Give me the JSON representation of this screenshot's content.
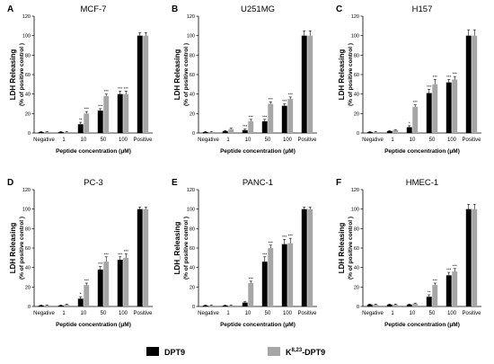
{
  "colors": {
    "dpt9": "#000000",
    "k823": "#a6a6a6",
    "axis": "#000000",
    "error": "#000000"
  },
  "legend": {
    "items": [
      {
        "name": "DPT9",
        "color": "#000000"
      },
      {
        "name_main": "K",
        "name_sup": "8,23",
        "name_rest": "-DPT9",
        "color": "#a6a6a6"
      }
    ],
    "placement": "bottom-center"
  },
  "chart_data": [
    {
      "type": "bar",
      "panel": "A",
      "title": "MCF-7",
      "ylabel": "LDH Releasing",
      "ylabel2": "(% of positive control )",
      "xlabel": "Peptide concentration (μM)",
      "ylim": [
        0,
        120
      ],
      "yticks": [
        0,
        20,
        40,
        60,
        80,
        100,
        120
      ],
      "categories": [
        "Negative",
        "1",
        "10",
        "50",
        "100",
        "Positive"
      ],
      "series": [
        {
          "name": "DPT9",
          "values": [
            1,
            1,
            9,
            23,
            40,
            100
          ],
          "errors": [
            0.5,
            0.5,
            2,
            2,
            3,
            3
          ],
          "sig": [
            "",
            "",
            "**",
            "***",
            "***",
            ""
          ]
        },
        {
          "name": "K8,23-DPT9",
          "values": [
            1,
            1,
            20,
            38,
            40,
            100
          ],
          "errors": [
            0.5,
            0.5,
            2,
            2,
            3,
            3
          ],
          "sig": [
            "",
            "",
            "***",
            "***",
            "***",
            ""
          ]
        }
      ]
    },
    {
      "type": "bar",
      "panel": "B",
      "title": "U251MG",
      "ylabel": "LDH Releasing",
      "ylabel2": "(% of positive control )",
      "xlabel": "Peptide concentration (μM)",
      "ylim": [
        0,
        120
      ],
      "yticks": [
        0,
        20,
        40,
        60,
        80,
        100,
        120
      ],
      "categories": [
        "Negative",
        "1",
        "10",
        "50",
        "100",
        "Positive"
      ],
      "series": [
        {
          "name": "DPT9",
          "values": [
            1,
            2,
            3,
            12,
            28,
            100
          ],
          "errors": [
            0.5,
            0.5,
            1,
            2,
            2,
            5
          ],
          "sig": [
            "",
            "",
            "***",
            "***",
            "***",
            ""
          ]
        },
        {
          "name": "K8,23-DPT9",
          "values": [
            1,
            4,
            12,
            30,
            35,
            100
          ],
          "errors": [
            0.5,
            1,
            2,
            2,
            2,
            5
          ],
          "sig": [
            "",
            "",
            "***",
            "***",
            "***",
            ""
          ]
        }
      ]
    },
    {
      "type": "bar",
      "panel": "C",
      "title": "H157",
      "ylabel": "LDH Releasing",
      "ylabel2": "(% of positive control )",
      "xlabel": "Peptide concentration (μM)",
      "ylim": [
        0,
        120
      ],
      "yticks": [
        0,
        20,
        40,
        60,
        80,
        100,
        120
      ],
      "categories": [
        "Negative",
        "1",
        "10",
        "50",
        "100",
        "Positive"
      ],
      "series": [
        {
          "name": "DPT9",
          "values": [
            1,
            2,
            6,
            41,
            52,
            100
          ],
          "errors": [
            0.5,
            0.5,
            1.5,
            4,
            3,
            6
          ],
          "sig": [
            "",
            "",
            "*",
            "***",
            "***",
            ""
          ]
        },
        {
          "name": "K8,23-DPT9",
          "values": [
            1,
            3,
            27,
            50,
            55,
            100
          ],
          "errors": [
            0.5,
            0.5,
            2,
            5,
            3,
            6
          ],
          "sig": [
            "",
            "",
            "***",
            "***",
            "***",
            ""
          ]
        }
      ]
    },
    {
      "type": "bar",
      "panel": "D",
      "title": "PC-3",
      "ylabel": "LDH Releasing",
      "ylabel2": "(% of positive control )",
      "xlabel": "Peptide concentration (μM)",
      "ylim": [
        0,
        120
      ],
      "yticks": [
        0,
        20,
        40,
        60,
        80,
        100,
        120
      ],
      "categories": [
        "Negative",
        "1",
        "10",
        "50",
        "100",
        "Positive"
      ],
      "series": [
        {
          "name": "DPT9",
          "values": [
            1,
            1,
            8,
            38,
            48,
            100
          ],
          "errors": [
            0.5,
            0.5,
            2,
            3,
            3,
            2
          ],
          "sig": [
            "",
            "",
            "*",
            "***",
            "***",
            ""
          ]
        },
        {
          "name": "K8,23-DPT9",
          "values": [
            1,
            2,
            22,
            46,
            50,
            100
          ],
          "errors": [
            0.5,
            0.5,
            2,
            5,
            4,
            2
          ],
          "sig": [
            "",
            "",
            "***",
            "***",
            "***",
            ""
          ]
        }
      ]
    },
    {
      "type": "bar",
      "panel": "E",
      "title": "PANC-1",
      "ylabel": "LDH_Releasing",
      "ylabel2": "(% of positive control )",
      "xlabel": "Peptide concentration (μM)",
      "ylim": [
        0,
        120
      ],
      "yticks": [
        0,
        20,
        40,
        60,
        80,
        100,
        120
      ],
      "categories": [
        "Negative",
        "1",
        "10",
        "50",
        "100",
        "Positive"
      ],
      "series": [
        {
          "name": "DPT9",
          "values": [
            1,
            1,
            4,
            46,
            64,
            100
          ],
          "errors": [
            0.5,
            0.5,
            1,
            5,
            5,
            2
          ],
          "sig": [
            "",
            "",
            "",
            "***",
            "***",
            ""
          ]
        },
        {
          "name": "K8,23-DPT9",
          "values": [
            1,
            1,
            24,
            60,
            65,
            100
          ],
          "errors": [
            0.5,
            0.5,
            2,
            3,
            5,
            2
          ],
          "sig": [
            "",
            "",
            "***",
            "***",
            "***",
            ""
          ]
        }
      ]
    },
    {
      "type": "bar",
      "panel": "F",
      "title": "HMEC-1",
      "ylabel": "LDH Releasing",
      "ylabel2": "(% of positive control )",
      "xlabel": "Peptide concentration (μM)",
      "ylim": [
        0,
        120
      ],
      "yticks": [
        0,
        20,
        40,
        60,
        80,
        100,
        120
      ],
      "categories": [
        "Negative",
        "1",
        "10",
        "50",
        "100",
        "Positive"
      ],
      "series": [
        {
          "name": "DPT9",
          "values": [
            2,
            2,
            2,
            10,
            32,
            100
          ],
          "errors": [
            0.5,
            0.5,
            0.5,
            2,
            3,
            5
          ],
          "sig": [
            "",
            "",
            "",
            "**",
            "***",
            ""
          ]
        },
        {
          "name": "K8,23-DPT9",
          "values": [
            2,
            2,
            3,
            22,
            36,
            100
          ],
          "errors": [
            0.5,
            0.5,
            0.5,
            2,
            3,
            5
          ],
          "sig": [
            "",
            "",
            "",
            "***",
            "***",
            ""
          ]
        }
      ]
    }
  ]
}
